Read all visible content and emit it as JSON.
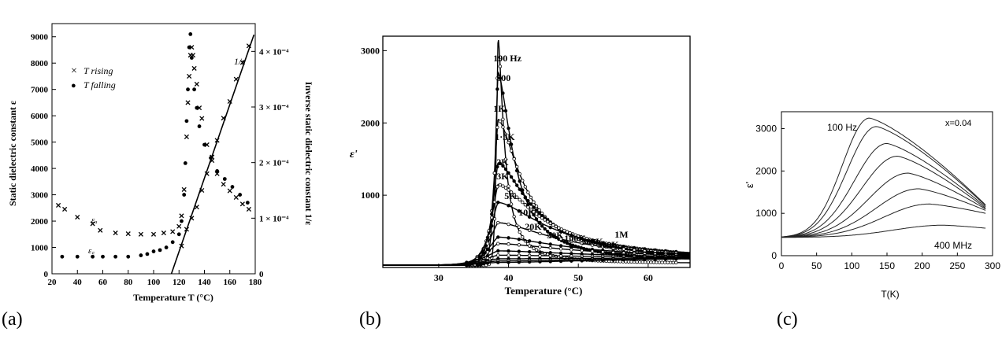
{
  "panels": [
    "(a)",
    "(b)",
    "(c)"
  ],
  "chart_data": [
    {
      "type": "scatter",
      "xlabel": "Temperature T (°C)",
      "ylabel": "Static dielectric constant ε",
      "y2label": "Inverse static dielectric constant 1/ε",
      "xlim": [
        20,
        180
      ],
      "ylim": [
        0,
        9500
      ],
      "y2lim": [
        0,
        0.00045
      ],
      "xticks": [
        20,
        40,
        60,
        80,
        100,
        120,
        140,
        160,
        180
      ],
      "yticks": [
        0,
        1000,
        2000,
        3000,
        4000,
        5000,
        6000,
        7000,
        8000,
        9000
      ],
      "y2ticks": [
        {
          "v": 0,
          "label": "0"
        },
        {
          "v": 0.0001,
          "label": "1 × 10⁻⁴"
        },
        {
          "v": 0.0002,
          "label": "2 × 10⁻⁴"
        },
        {
          "v": 0.0003,
          "label": "3 × 10⁻⁴"
        },
        {
          "v": 0.0004,
          "label": "4 × 10⁻⁴"
        }
      ],
      "legend": {
        "placement": "top-left",
        "items": [
          {
            "symbol": "×",
            "label": "T rising"
          },
          {
            "symbol": "●",
            "label": "T falling"
          }
        ]
      },
      "annotations": [
        "εₐ",
        "ε꜀",
        "1/ε"
      ],
      "series": [
        {
          "name": "T rising",
          "marker": "x",
          "x": [
            25,
            30,
            40,
            52,
            58,
            70,
            80,
            90,
            100,
            108,
            115,
            120,
            122,
            124,
            126,
            127,
            128,
            129,
            130,
            131,
            132,
            134,
            136,
            138,
            142,
            146,
            150,
            155,
            160,
            165,
            170,
            175
          ],
          "y": [
            2600,
            2450,
            2150,
            1900,
            1650,
            1550,
            1520,
            1500,
            1500,
            1550,
            1600,
            1800,
            2200,
            3200,
            5200,
            6500,
            7500,
            8300,
            8600,
            8300,
            7800,
            7200,
            6300,
            5900,
            4900,
            4300,
            3800,
            3400,
            3150,
            2900,
            2650,
            2450
          ]
        },
        {
          "name": "T falling",
          "marker": "dot",
          "x": [
            28,
            40,
            52,
            60,
            70,
            80,
            90,
            95,
            100,
            105,
            110,
            115,
            120,
            122,
            124,
            125,
            126,
            127,
            128,
            129,
            130,
            132,
            134,
            136,
            140,
            145,
            150,
            156,
            162,
            168,
            174
          ],
          "y": [
            650,
            650,
            650,
            650,
            650,
            650,
            700,
            750,
            850,
            900,
            1000,
            1200,
            1500,
            2000,
            3000,
            4200,
            5800,
            7000,
            8600,
            9100,
            8200,
            7000,
            6300,
            5600,
            4900,
            4400,
            3900,
            3600,
            3300,
            3000,
            2700
          ]
        },
        {
          "name": "1/ε",
          "marker": "x",
          "x": [
            122,
            126,
            130,
            134,
            138,
            142,
            146,
            150,
            155,
            160,
            165,
            170,
            175
          ],
          "y2": [
            5e-05,
            8e-05,
            0.0001,
            0.00012,
            0.00015,
            0.00018,
            0.00021,
            0.00024,
            0.00028,
            0.00031,
            0.00035,
            0.00038,
            0.00041
          ]
        }
      ],
      "fit_line": {
        "x": [
          114,
          179
        ],
        "y2": [
          0,
          0.00043
        ]
      }
    },
    {
      "type": "line",
      "xlabel": "Temperature (°C)",
      "ylabel": "ε'",
      "xlim": [
        22,
        66
      ],
      "ylim": [
        0,
        3200
      ],
      "xticks": [
        30,
        40,
        50,
        60
      ],
      "yticks": [
        1000,
        2000,
        3000
      ],
      "peak_x": 38.5,
      "series": [
        {
          "name": "190 Hz",
          "peak": 3180
        },
        {
          "name": "500",
          "peak": 2700
        },
        {
          "name": "1K",
          "peak": 2050
        },
        {
          "name": "1·5K",
          "peak": 1450
        },
        {
          "name": "2K",
          "peak": 1150
        },
        {
          "name": "3K",
          "peak": 900
        },
        {
          "name": "5K",
          "peak": 620
        },
        {
          "name": "10K",
          "peak": 420
        },
        {
          "name": "20K",
          "peak": 330
        },
        {
          "name": "50K",
          "peak": 230
        },
        {
          "name": "100K",
          "peak": 170
        },
        {
          "name": "300K",
          "peak": 120
        },
        {
          "name": "500K",
          "peak": 90
        },
        {
          "name": "1M",
          "peak": 70
        }
      ]
    },
    {
      "type": "line",
      "xlabel": "T(K)",
      "ylabel": "ε'",
      "xlim": [
        0,
        300
      ],
      "ylim": [
        0,
        3400
      ],
      "xticks": [
        0,
        50,
        100,
        150,
        200,
        250,
        300
      ],
      "yticks": [
        0,
        1000,
        2000,
        3000
      ],
      "annotations": [
        "100 Hz",
        "400 MHz",
        "x=0.04"
      ],
      "series": [
        {
          "peak_x": 125,
          "peak": 3250,
          "end": 1200
        },
        {
          "peak_x": 135,
          "peak": 3050,
          "end": 1180
        },
        {
          "peak_x": 150,
          "peak": 2650,
          "end": 1150
        },
        {
          "peak_x": 165,
          "peak": 2350,
          "end": 1120
        },
        {
          "peak_x": 180,
          "peak": 1950,
          "end": 1100
        },
        {
          "peak_x": 195,
          "peak": 1580,
          "end": 1070
        },
        {
          "peak_x": 210,
          "peak": 1220,
          "end": 1000
        },
        {
          "peak_x": 230,
          "peak": 720,
          "end": 650
        }
      ]
    }
  ]
}
